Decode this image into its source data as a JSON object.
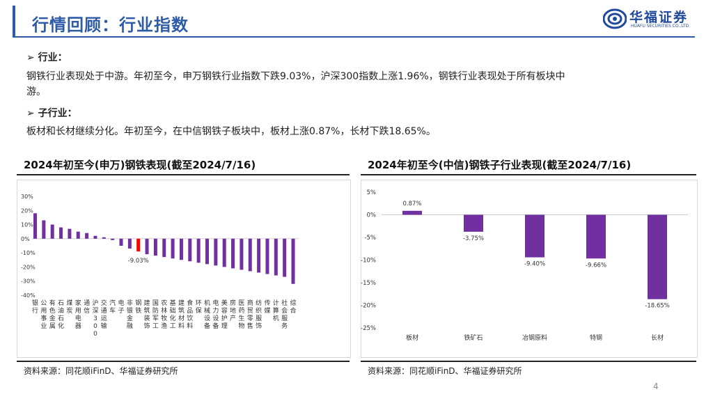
{
  "header": {
    "title": "行情回顾：行业指数",
    "logo_name": "华福证券",
    "logo_sub": "HUAFU SECURITIES CO.,LTD."
  },
  "section1": {
    "heading": "➢ 行业：",
    "text_line1": "钢铁行业表现处于中游。年初至今，申万钢铁行业指数下跌9.03%，沪深300指数上涨1.96%，钢铁行业表现处于所有板块中",
    "text_line2": "游。"
  },
  "section2": {
    "heading": "➢ 子行业：",
    "text": "板材和长材继续分化。年初至今，在中信钢铁子板块中，板材上涨0.87%，长材下跌18.65%。"
  },
  "left_chart": {
    "title": "2024年初至今(申万)钢铁表现(截至2024/7/16)",
    "source": "资料来源：同花顺iFinD、华福证券研究所"
  },
  "right_chart": {
    "title": "2024年初至今(中信)钢铁子行业表现(截至2024/7/16)",
    "source": "资料来源：同花顺iFinD、华福证券研究所"
  },
  "page_number": "4",
  "colors": {
    "accent": "#2e5ba6",
    "bar": "#7030a0",
    "highlight": "#ff0000"
  },
  "chart_data": [
    {
      "type": "bar",
      "title": "2024年初至今(申万)钢铁表现(截至2024/7/16)",
      "categories": [
        "银行",
        "公用事业",
        "有色金属",
        "石油石化",
        "煤炭",
        "家用电器",
        "通信",
        "沪深300",
        "交通运输",
        "汽车",
        "电子",
        "非银金融",
        "钢铁",
        "建筑装饰",
        "国防军工",
        "农林牧渔",
        "基础化工",
        "建筑材料",
        "食品饮料",
        "环保",
        "机械设备",
        "电力设备",
        "美容护理",
        "房地产",
        "医药生物",
        "商贸零售",
        "纺织服饰",
        "传媒",
        "计算机",
        "社会服务",
        "综合"
      ],
      "values": [
        18,
        13,
        10,
        8,
        7,
        5,
        4,
        2,
        1,
        -1,
        -5,
        -7,
        -9.03,
        -11,
        -12,
        -13,
        -14,
        -15,
        -16,
        -17,
        -18,
        -19,
        -20,
        -21,
        -22,
        -23,
        -24,
        -25,
        -26,
        -27,
        -32
      ],
      "yticks": [
        "30%",
        "20%",
        "10%",
        "0%",
        "-10%",
        "-20%",
        "-30%",
        "-40%"
      ],
      "ylim": [
        -40,
        30
      ],
      "highlight_index": 12,
      "highlight_label": "-9.03%"
    },
    {
      "type": "bar",
      "title": "2024年初至今(中信)钢铁子行业表现(截至2024/7/16)",
      "categories": [
        "板材",
        "铁矿石",
        "冶钢原料",
        "特钢",
        "长材"
      ],
      "values": [
        0.87,
        -3.75,
        -9.4,
        -9.66,
        -18.65
      ],
      "labels": [
        "0.87%",
        "-3.75%",
        "-9.40%",
        "-9.66%",
        "-18.65%"
      ],
      "yticks": [
        "5%",
        "0%",
        "-5%",
        "-10%",
        "-15%",
        "-20%",
        "-25%"
      ],
      "ylim": [
        -25,
        5
      ]
    }
  ]
}
